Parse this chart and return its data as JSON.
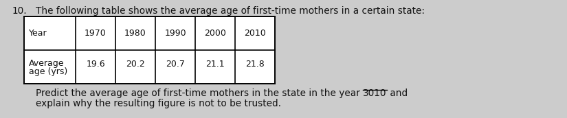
{
  "question_number": "10.",
  "header_text": "The following table shows the average age of first-time mothers in a certain state:",
  "col1_label": "Year",
  "col2_label_line1": "Average",
  "col2_label_line2": "age (yrs)",
  "years": [
    "1970",
    "1980",
    "1990",
    "2000",
    "2010"
  ],
  "ages": [
    "19.6",
    "20.2",
    "20.7",
    "21.1",
    "21.8"
  ],
  "footer_line1_before": "Predict the average age of first-time mothers in the state in the year ",
  "footer_year": "3010",
  "footer_line1_after": " and",
  "footer_line2": "explain why the resulting figure is not to be trusted.",
  "background_color": "#cccccc",
  "table_bg": "#ffffff",
  "text_color": "#111111",
  "header_fontsize": 9.8,
  "table_fontsize": 9.0,
  "footer_fontsize": 9.8
}
